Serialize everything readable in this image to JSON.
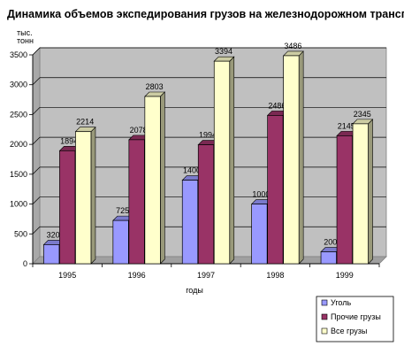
{
  "chart_data": {
    "type": "bar",
    "title": "Динамика объемов экспедирования грузов на железнодорожном транспорте",
    "xlabel": "годы",
    "ylabel": "тыс. тонн",
    "categories": [
      "1995",
      "1996",
      "1997",
      "1998",
      "1999"
    ],
    "series": [
      {
        "name": "Уголь",
        "values": [
          320,
          725,
          1400,
          1000,
          200
        ],
        "color": "#9999ff"
      },
      {
        "name": "Прочие грузы",
        "values": [
          1894,
          2078,
          1994,
          2486,
          2145
        ],
        "color": "#993366"
      },
      {
        "name": "Все грузы",
        "values": [
          2214,
          2803,
          3394,
          3486,
          2345
        ],
        "color": "#ffffcc"
      }
    ],
    "ylim": [
      0,
      3500
    ],
    "yticks": [
      0,
      500,
      1000,
      1500,
      2000,
      2500,
      3000,
      3500
    ],
    "grid": true,
    "three_d": true,
    "wall_color": "#c0c0c0",
    "legend_position": "bottom-right"
  }
}
